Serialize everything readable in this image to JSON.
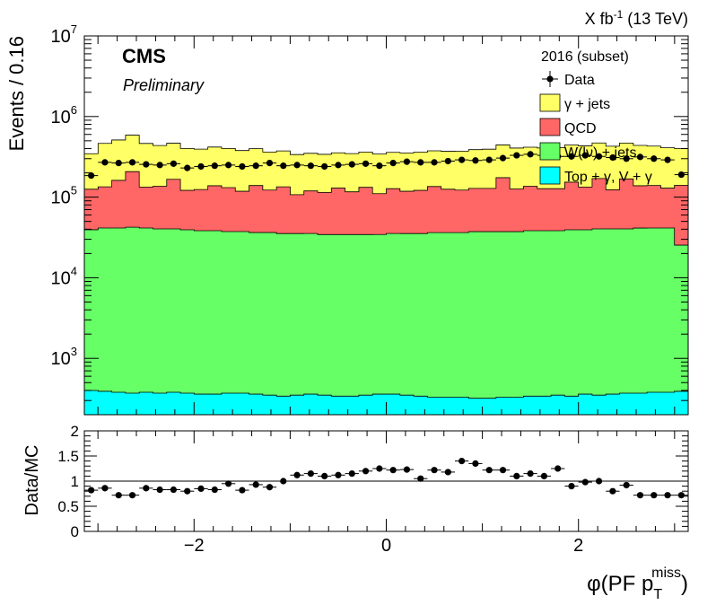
{
  "header": {
    "lumi_text": "X fb",
    "lumi_sup": "-1",
    "energy_text": " (13 TeV)"
  },
  "labels": {
    "cms": "CMS",
    "preliminary": "Preliminary"
  },
  "chart_data": [
    {
      "type": "histogram-stacked",
      "ylabel": "Events / 0.16",
      "yscale": "log",
      "ylim": [
        200,
        10000000
      ],
      "xlim": [
        -3.1416,
        3.1416
      ],
      "y_ticks": [
        {
          "v": 1000,
          "base": "10",
          "exp": "3"
        },
        {
          "v": 10000,
          "base": "10",
          "exp": "4"
        },
        {
          "v": 100000,
          "base": "10",
          "exp": "5"
        },
        {
          "v": 1000000,
          "base": "10",
          "exp": "6"
        },
        {
          "v": 10000000,
          "base": "10",
          "exp": "7"
        }
      ],
      "legend": {
        "title": "2016 (subset)",
        "placement": "top-right",
        "entries": [
          {
            "label": "Data",
            "kind": "marker",
            "color": "#000000"
          },
          {
            "label": "γ + jets",
            "kind": "fill",
            "color": "#ffff66"
          },
          {
            "label": "QCD",
            "kind": "fill",
            "color": "#ff6666"
          },
          {
            "label": "W(lν) + jets",
            "kind": "fill",
            "color": "#66ff66"
          },
          {
            "label": "Top + γ, V + γ",
            "kind": "fill",
            "color": "#00ffff"
          }
        ]
      },
      "series": [
        {
          "name": "Top + γ, V + γ",
          "color": "#00ffff",
          "values": [
            400,
            390,
            380,
            370,
            380,
            370,
            380,
            370,
            360,
            360,
            370,
            370,
            360,
            350,
            340,
            350,
            360,
            350,
            340,
            340,
            350,
            360,
            360,
            350,
            340,
            330,
            330,
            330,
            320,
            320,
            330,
            330,
            340,
            340,
            350,
            340,
            360,
            350,
            360,
            370,
            370,
            380,
            380,
            390
          ]
        },
        {
          "name": "W(lν) + jets",
          "color": "#66ff66",
          "values": [
            39000,
            41000,
            41000,
            42000,
            41000,
            40000,
            40000,
            39000,
            38000,
            38000,
            37000,
            37000,
            36000,
            36000,
            35000,
            35000,
            35000,
            34000,
            34000,
            34000,
            34000,
            34000,
            35000,
            35000,
            35000,
            36000,
            36000,
            36000,
            37000,
            37000,
            37000,
            37000,
            38000,
            38000,
            38000,
            39000,
            39000,
            40000,
            40000,
            40000,
            41000,
            41000,
            41000,
            25000
          ]
        },
        {
          "name": "QCD",
          "color": "#ff6666",
          "values": [
            86000,
            93000,
            120000,
            165000,
            92000,
            96000,
            126000,
            82000,
            86000,
            100000,
            94000,
            81000,
            103000,
            86000,
            99000,
            72000,
            84000,
            80000,
            95000,
            82000,
            98000,
            76000,
            92000,
            83000,
            86000,
            99000,
            89000,
            86000,
            91000,
            91000,
            137000,
            89000,
            98000,
            89000,
            89000,
            114000,
            94000,
            130000,
            83000,
            128000,
            97000,
            98000,
            88000,
            115000
          ]
        },
        {
          "name": "γ + jets",
          "color": "#ffff66",
          "values": [
            220000,
            330000,
            350000,
            380000,
            330000,
            300000,
            300000,
            280000,
            270000,
            280000,
            270000,
            260000,
            260000,
            240000,
            240000,
            230000,
            230000,
            225000,
            225000,
            230000,
            230000,
            232000,
            232000,
            235000,
            240000,
            240000,
            245000,
            250000,
            260000,
            265000,
            270000,
            280000,
            280000,
            280000,
            285000,
            290000,
            300000,
            300000,
            305000,
            300000,
            300000,
            290000,
            280000,
            260000
          ]
        }
      ],
      "data_points": [
        185000,
        270000,
        265000,
        270000,
        255000,
        250000,
        260000,
        230000,
        240000,
        245000,
        250000,
        240000,
        245000,
        265000,
        245000,
        250000,
        245000,
        240000,
        250000,
        255000,
        260000,
        245000,
        265000,
        275000,
        270000,
        270000,
        280000,
        290000,
        285000,
        290000,
        305000,
        330000,
        340000,
        330000,
        320000,
        320000,
        330000,
        320000,
        310000,
        300000,
        315000,
        300000,
        290000,
        190000
      ]
    },
    {
      "type": "scatter",
      "ylabel": "Data/MC",
      "xlabel": "φ(PF p_T^miss)",
      "xlabel_prefix": "φ(PF p",
      "xlabel_sub": "T",
      "xlabel_sup": "miss",
      "xlabel_suffix": ")",
      "ylim": [
        0,
        2
      ],
      "xlim": [
        -3.1416,
        3.1416
      ],
      "x_ticks": [
        {
          "v": -2,
          "label": "−2"
        },
        {
          "v": 0,
          "label": "0"
        },
        {
          "v": 2,
          "label": "2"
        }
      ],
      "y_ticks": [
        {
          "v": 0,
          "label": "0"
        },
        {
          "v": 0.5,
          "label": "0.5"
        },
        {
          "v": 1,
          "label": "1"
        },
        {
          "v": 1.5,
          "label": "1.5"
        },
        {
          "v": 2,
          "label": "2"
        }
      ],
      "reference_line": 1,
      "values": [
        0.82,
        0.86,
        0.72,
        0.72,
        0.86,
        0.83,
        0.83,
        0.8,
        0.85,
        0.83,
        0.95,
        0.82,
        0.93,
        0.88,
        1.0,
        1.12,
        1.15,
        1.1,
        1.12,
        1.15,
        1.2,
        1.25,
        1.22,
        1.23,
        1.05,
        1.22,
        1.18,
        1.4,
        1.35,
        1.22,
        1.22,
        1.1,
        1.15,
        1.1,
        1.25,
        0.9,
        0.98,
        1.0,
        0.8,
        0.92,
        0.72,
        0.72,
        0.72,
        0.72
      ]
    }
  ]
}
